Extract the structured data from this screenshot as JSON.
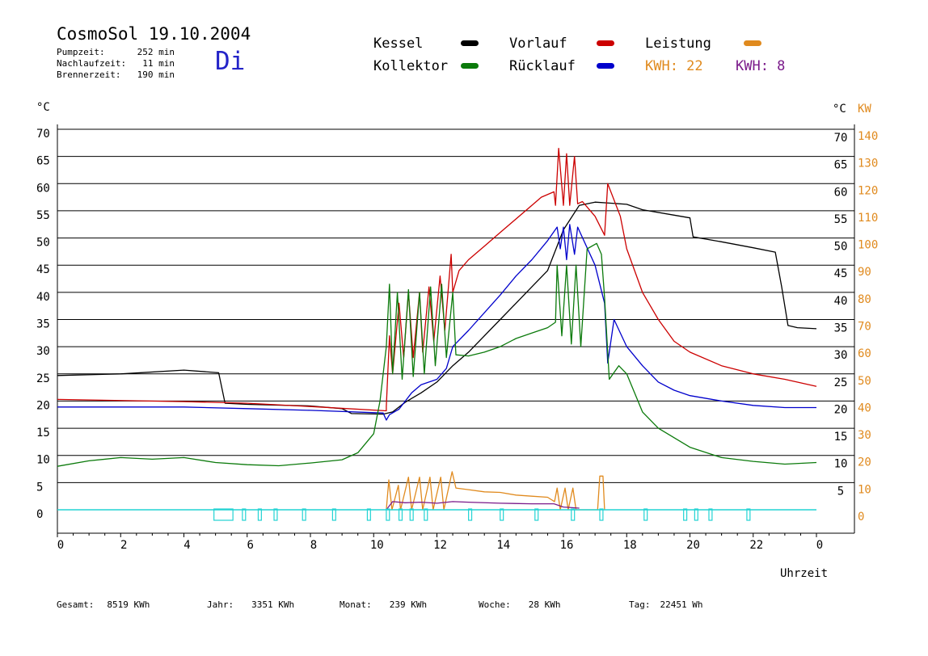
{
  "header": {
    "title": "CosmoSol 19.10.2004",
    "day": "Di",
    "stats": [
      {
        "label": "Pumpzeit:",
        "value": "252 min"
      },
      {
        "label": "Nachlaufzeit:",
        "value": "11 min"
      },
      {
        "label": "Brennerzeit:",
        "value": "190 min"
      }
    ]
  },
  "legend": {
    "kessel": "Kessel",
    "kollektor": "Kollektor",
    "vorlauf": "Vorlauf",
    "ruecklauf": "Rücklauf",
    "leistung": "Leistung",
    "kwh1": "KWH: 22",
    "kwh2": "KWH: 8"
  },
  "colors": {
    "kessel": "#000000",
    "kollektor": "#0b7a0b",
    "vorlauf": "#cc0000",
    "ruecklauf": "#0000cc",
    "leistung": "#e08a1e",
    "kwh2": "#7a1a8a",
    "pump": "#22d3d3",
    "grid": "#000000"
  },
  "footer": [
    {
      "label": "Gesamt:",
      "value": "8519 KWh"
    },
    {
      "label": "Jahr:",
      "value": "3351 KWh"
    },
    {
      "label": "Monat:",
      "value": "239 KWh"
    },
    {
      "label": "Woche:",
      "value": "28 KWh"
    },
    {
      "label": "Tag:",
      "value": "22451 Wh"
    }
  ],
  "chart_data": {
    "type": "line",
    "title": "CosmoSol 19.10.2004",
    "xlabel": "Uhrzeit",
    "ylabel_left": "°C",
    "ylabel_right_temp": "°C",
    "ylabel_right_power": "KW",
    "xlim": [
      0,
      24
    ],
    "ylim": [
      0,
      70
    ],
    "y2lim": [
      0,
      140
    ],
    "x_ticks": [
      "0",
      "2",
      "4",
      "6",
      "8",
      "10",
      "12",
      "14",
      "16",
      "18",
      "20",
      "22",
      "0"
    ],
    "y_ticks": [
      0,
      5,
      10,
      15,
      20,
      25,
      30,
      35,
      40,
      45,
      50,
      55,
      60,
      65,
      70
    ],
    "y2_ticks": [
      0,
      10,
      20,
      30,
      40,
      50,
      60,
      70,
      80,
      90,
      100,
      110,
      120,
      130,
      140
    ],
    "grid": "horizontal",
    "legend_position": "top",
    "series": [
      {
        "name": "Kessel",
        "color": "#000000",
        "points": [
          [
            0,
            24.7
          ],
          [
            2,
            25
          ],
          [
            4,
            25.7
          ],
          [
            5.1,
            25.2
          ],
          [
            5.3,
            19.6
          ],
          [
            6,
            19.4
          ],
          [
            8,
            19.1
          ],
          [
            9,
            18.6
          ],
          [
            9.3,
            17.7
          ],
          [
            10.3,
            17.6
          ],
          [
            10.6,
            18
          ],
          [
            11,
            19.8
          ],
          [
            11.5,
            21.5
          ],
          [
            12,
            23.5
          ],
          [
            12.5,
            26.5
          ],
          [
            13,
            29
          ],
          [
            14,
            35
          ],
          [
            15,
            41
          ],
          [
            15.5,
            44
          ],
          [
            16,
            51.5
          ],
          [
            16.5,
            56
          ],
          [
            17,
            56.6
          ],
          [
            17.5,
            56.4
          ],
          [
            18,
            56.2
          ],
          [
            18.5,
            55.2
          ],
          [
            19.5,
            54.2
          ],
          [
            20,
            53.7
          ],
          [
            20.1,
            50.2
          ],
          [
            21,
            49.3
          ],
          [
            22,
            48.2
          ],
          [
            22.7,
            47.4
          ],
          [
            22.9,
            41
          ],
          [
            23.1,
            33.9
          ],
          [
            23.4,
            33.5
          ],
          [
            24,
            33.3
          ]
        ]
      },
      {
        "name": "Vorlauf",
        "color": "#cc0000",
        "points": [
          [
            0,
            20.3
          ],
          [
            4,
            19.9
          ],
          [
            6,
            19.6
          ],
          [
            8,
            19
          ],
          [
            10.4,
            18.2
          ],
          [
            10.4,
            19
          ],
          [
            10.5,
            32
          ],
          [
            10.6,
            25
          ],
          [
            10.8,
            38
          ],
          [
            10.95,
            28
          ],
          [
            11.1,
            40
          ],
          [
            11.25,
            28
          ],
          [
            11.45,
            40
          ],
          [
            11.55,
            29
          ],
          [
            11.75,
            41
          ],
          [
            11.9,
            31
          ],
          [
            12.1,
            43
          ],
          [
            12.25,
            33
          ],
          [
            12.45,
            47
          ],
          [
            12.5,
            40
          ],
          [
            12.7,
            44
          ],
          [
            13,
            46
          ],
          [
            13.5,
            48.5
          ],
          [
            14,
            51
          ],
          [
            15,
            56
          ],
          [
            15.3,
            57.5
          ],
          [
            15.7,
            58.5
          ],
          [
            15.75,
            56
          ],
          [
            15.85,
            66.5
          ],
          [
            16,
            56
          ],
          [
            16.1,
            65.5
          ],
          [
            16.2,
            56
          ],
          [
            16.35,
            65
          ],
          [
            16.45,
            56.3
          ],
          [
            16.6,
            56.7
          ],
          [
            17,
            54
          ],
          [
            17.3,
            50.5
          ],
          [
            17.4,
            60
          ],
          [
            17.8,
            54
          ],
          [
            18,
            48
          ],
          [
            18.5,
            40
          ],
          [
            19,
            35
          ],
          [
            19.5,
            31
          ],
          [
            20,
            29
          ],
          [
            21,
            26.5
          ],
          [
            22,
            25
          ],
          [
            23,
            24
          ],
          [
            24,
            22.7
          ]
        ]
      },
      {
        "name": "Rücklauf",
        "color": "#0000cc",
        "points": [
          [
            0,
            18.9
          ],
          [
            4,
            18.9
          ],
          [
            6,
            18.6
          ],
          [
            8,
            18.3
          ],
          [
            10.3,
            17.8
          ],
          [
            10.4,
            16.5
          ],
          [
            10.5,
            17.5
          ],
          [
            10.8,
            18.5
          ],
          [
            11,
            20
          ],
          [
            11.2,
            21.5
          ],
          [
            11.5,
            23
          ],
          [
            12,
            24
          ],
          [
            12.3,
            26
          ],
          [
            12.5,
            30
          ],
          [
            13,
            33
          ],
          [
            14,
            39.5
          ],
          [
            14.5,
            43
          ],
          [
            15,
            46
          ],
          [
            15.5,
            49.5
          ],
          [
            15.8,
            52
          ],
          [
            15.9,
            48
          ],
          [
            16,
            52
          ],
          [
            16.1,
            46
          ],
          [
            16.2,
            52.5
          ],
          [
            16.35,
            47
          ],
          [
            16.45,
            52
          ],
          [
            17,
            45
          ],
          [
            17.3,
            38
          ],
          [
            17.4,
            27
          ],
          [
            17.6,
            35
          ],
          [
            18,
            30
          ],
          [
            18.5,
            26.5
          ],
          [
            19,
            23.5
          ],
          [
            19.5,
            22
          ],
          [
            20,
            21
          ],
          [
            21,
            20
          ],
          [
            22,
            19.2
          ],
          [
            23,
            18.8
          ],
          [
            24,
            18.8
          ]
        ]
      },
      {
        "name": "Kollektor",
        "color": "#0b7a0b",
        "points": [
          [
            0,
            8
          ],
          [
            1,
            9
          ],
          [
            2,
            9.6
          ],
          [
            3,
            9.3
          ],
          [
            4,
            9.6
          ],
          [
            5,
            8.7
          ],
          [
            6,
            8.3
          ],
          [
            7,
            8.1
          ],
          [
            8,
            8.6
          ],
          [
            9,
            9.2
          ],
          [
            9.5,
            10.5
          ],
          [
            10,
            14
          ],
          [
            10.2,
            20
          ],
          [
            10.4,
            30
          ],
          [
            10.5,
            41.5
          ],
          [
            10.6,
            25
          ],
          [
            10.75,
            40
          ],
          [
            10.9,
            24
          ],
          [
            11.1,
            40.5
          ],
          [
            11.25,
            24.5
          ],
          [
            11.45,
            40
          ],
          [
            11.6,
            25
          ],
          [
            11.8,
            41
          ],
          [
            11.95,
            26.5
          ],
          [
            12.15,
            41.5
          ],
          [
            12.3,
            28
          ],
          [
            12.5,
            40
          ],
          [
            12.6,
            28.5
          ],
          [
            13,
            28.3
          ],
          [
            13.5,
            29
          ],
          [
            14,
            30
          ],
          [
            14.5,
            31.5
          ],
          [
            15,
            32.5
          ],
          [
            15.5,
            33.5
          ],
          [
            15.75,
            34.5
          ],
          [
            15.8,
            45
          ],
          [
            15.95,
            32
          ],
          [
            16.1,
            45
          ],
          [
            16.25,
            30.5
          ],
          [
            16.4,
            45
          ],
          [
            16.55,
            30
          ],
          [
            16.75,
            48
          ],
          [
            17.05,
            49
          ],
          [
            17.2,
            47
          ],
          [
            17.3,
            39
          ],
          [
            17.45,
            24
          ],
          [
            17.75,
            26.5
          ],
          [
            18,
            25
          ],
          [
            18.5,
            18
          ],
          [
            19,
            15
          ],
          [
            20,
            11.5
          ],
          [
            21,
            9.6
          ],
          [
            22,
            8.9
          ],
          [
            23,
            8.4
          ],
          [
            24,
            8.7
          ]
        ]
      },
      {
        "name": "Leistung",
        "color": "#e08a1e",
        "points": [
          [
            10.4,
            0
          ],
          [
            10.48,
            5.5
          ],
          [
            10.58,
            0
          ],
          [
            10.78,
            4.5
          ],
          [
            10.85,
            0
          ],
          [
            11.1,
            6
          ],
          [
            11.2,
            0
          ],
          [
            11.45,
            6
          ],
          [
            11.55,
            0
          ],
          [
            11.78,
            6
          ],
          [
            11.88,
            0
          ],
          [
            12.12,
            6
          ],
          [
            12.22,
            0
          ],
          [
            12.48,
            7
          ],
          [
            12.6,
            4
          ],
          [
            13,
            3.7
          ],
          [
            13.5,
            3.3
          ],
          [
            14,
            3.2
          ],
          [
            14.5,
            2.7
          ],
          [
            15,
            2.5
          ],
          [
            15.5,
            2.3
          ],
          [
            15.72,
            1.5
          ],
          [
            15.8,
            4
          ],
          [
            15.9,
            0
          ],
          [
            16.05,
            4
          ],
          [
            16.15,
            0
          ],
          [
            16.3,
            4
          ],
          [
            16.4,
            0
          ],
          [
            17.08,
            0
          ],
          [
            17.15,
            6.2
          ],
          [
            17.25,
            6.2
          ],
          [
            17.3,
            0
          ]
        ]
      },
      {
        "name": "KWH: 8",
        "color": "#7a1a8a",
        "points": [
          [
            10.4,
            0
          ],
          [
            10.6,
            1.5
          ],
          [
            11,
            1.3
          ],
          [
            11.5,
            1.4
          ],
          [
            12,
            1.2
          ],
          [
            12.5,
            1.5
          ],
          [
            13,
            1.4
          ],
          [
            14,
            1.2
          ],
          [
            15,
            1.1
          ],
          [
            15.7,
            1.1
          ],
          [
            16,
            0.5
          ],
          [
            16.5,
            0.3
          ]
        ]
      }
    ],
    "pump_intervals": [
      [
        4.95,
        5.55
      ],
      [
        5.85,
        5.95
      ],
      [
        6.35,
        6.45
      ],
      [
        6.85,
        6.95
      ],
      [
        7.75,
        7.85
      ],
      [
        8.7,
        8.8
      ],
      [
        9.8,
        9.9
      ],
      [
        10.4,
        10.5
      ],
      [
        10.8,
        10.9
      ],
      [
        11.15,
        11.25
      ],
      [
        11.6,
        11.7
      ],
      [
        13.0,
        13.1
      ],
      [
        14.0,
        14.1
      ],
      [
        15.1,
        15.2
      ],
      [
        16.25,
        16.35
      ],
      [
        17.15,
        17.25
      ],
      [
        18.55,
        18.65
      ],
      [
        19.8,
        19.9
      ],
      [
        20.15,
        20.25
      ],
      [
        20.6,
        20.7
      ],
      [
        21.8,
        21.9
      ]
    ]
  }
}
